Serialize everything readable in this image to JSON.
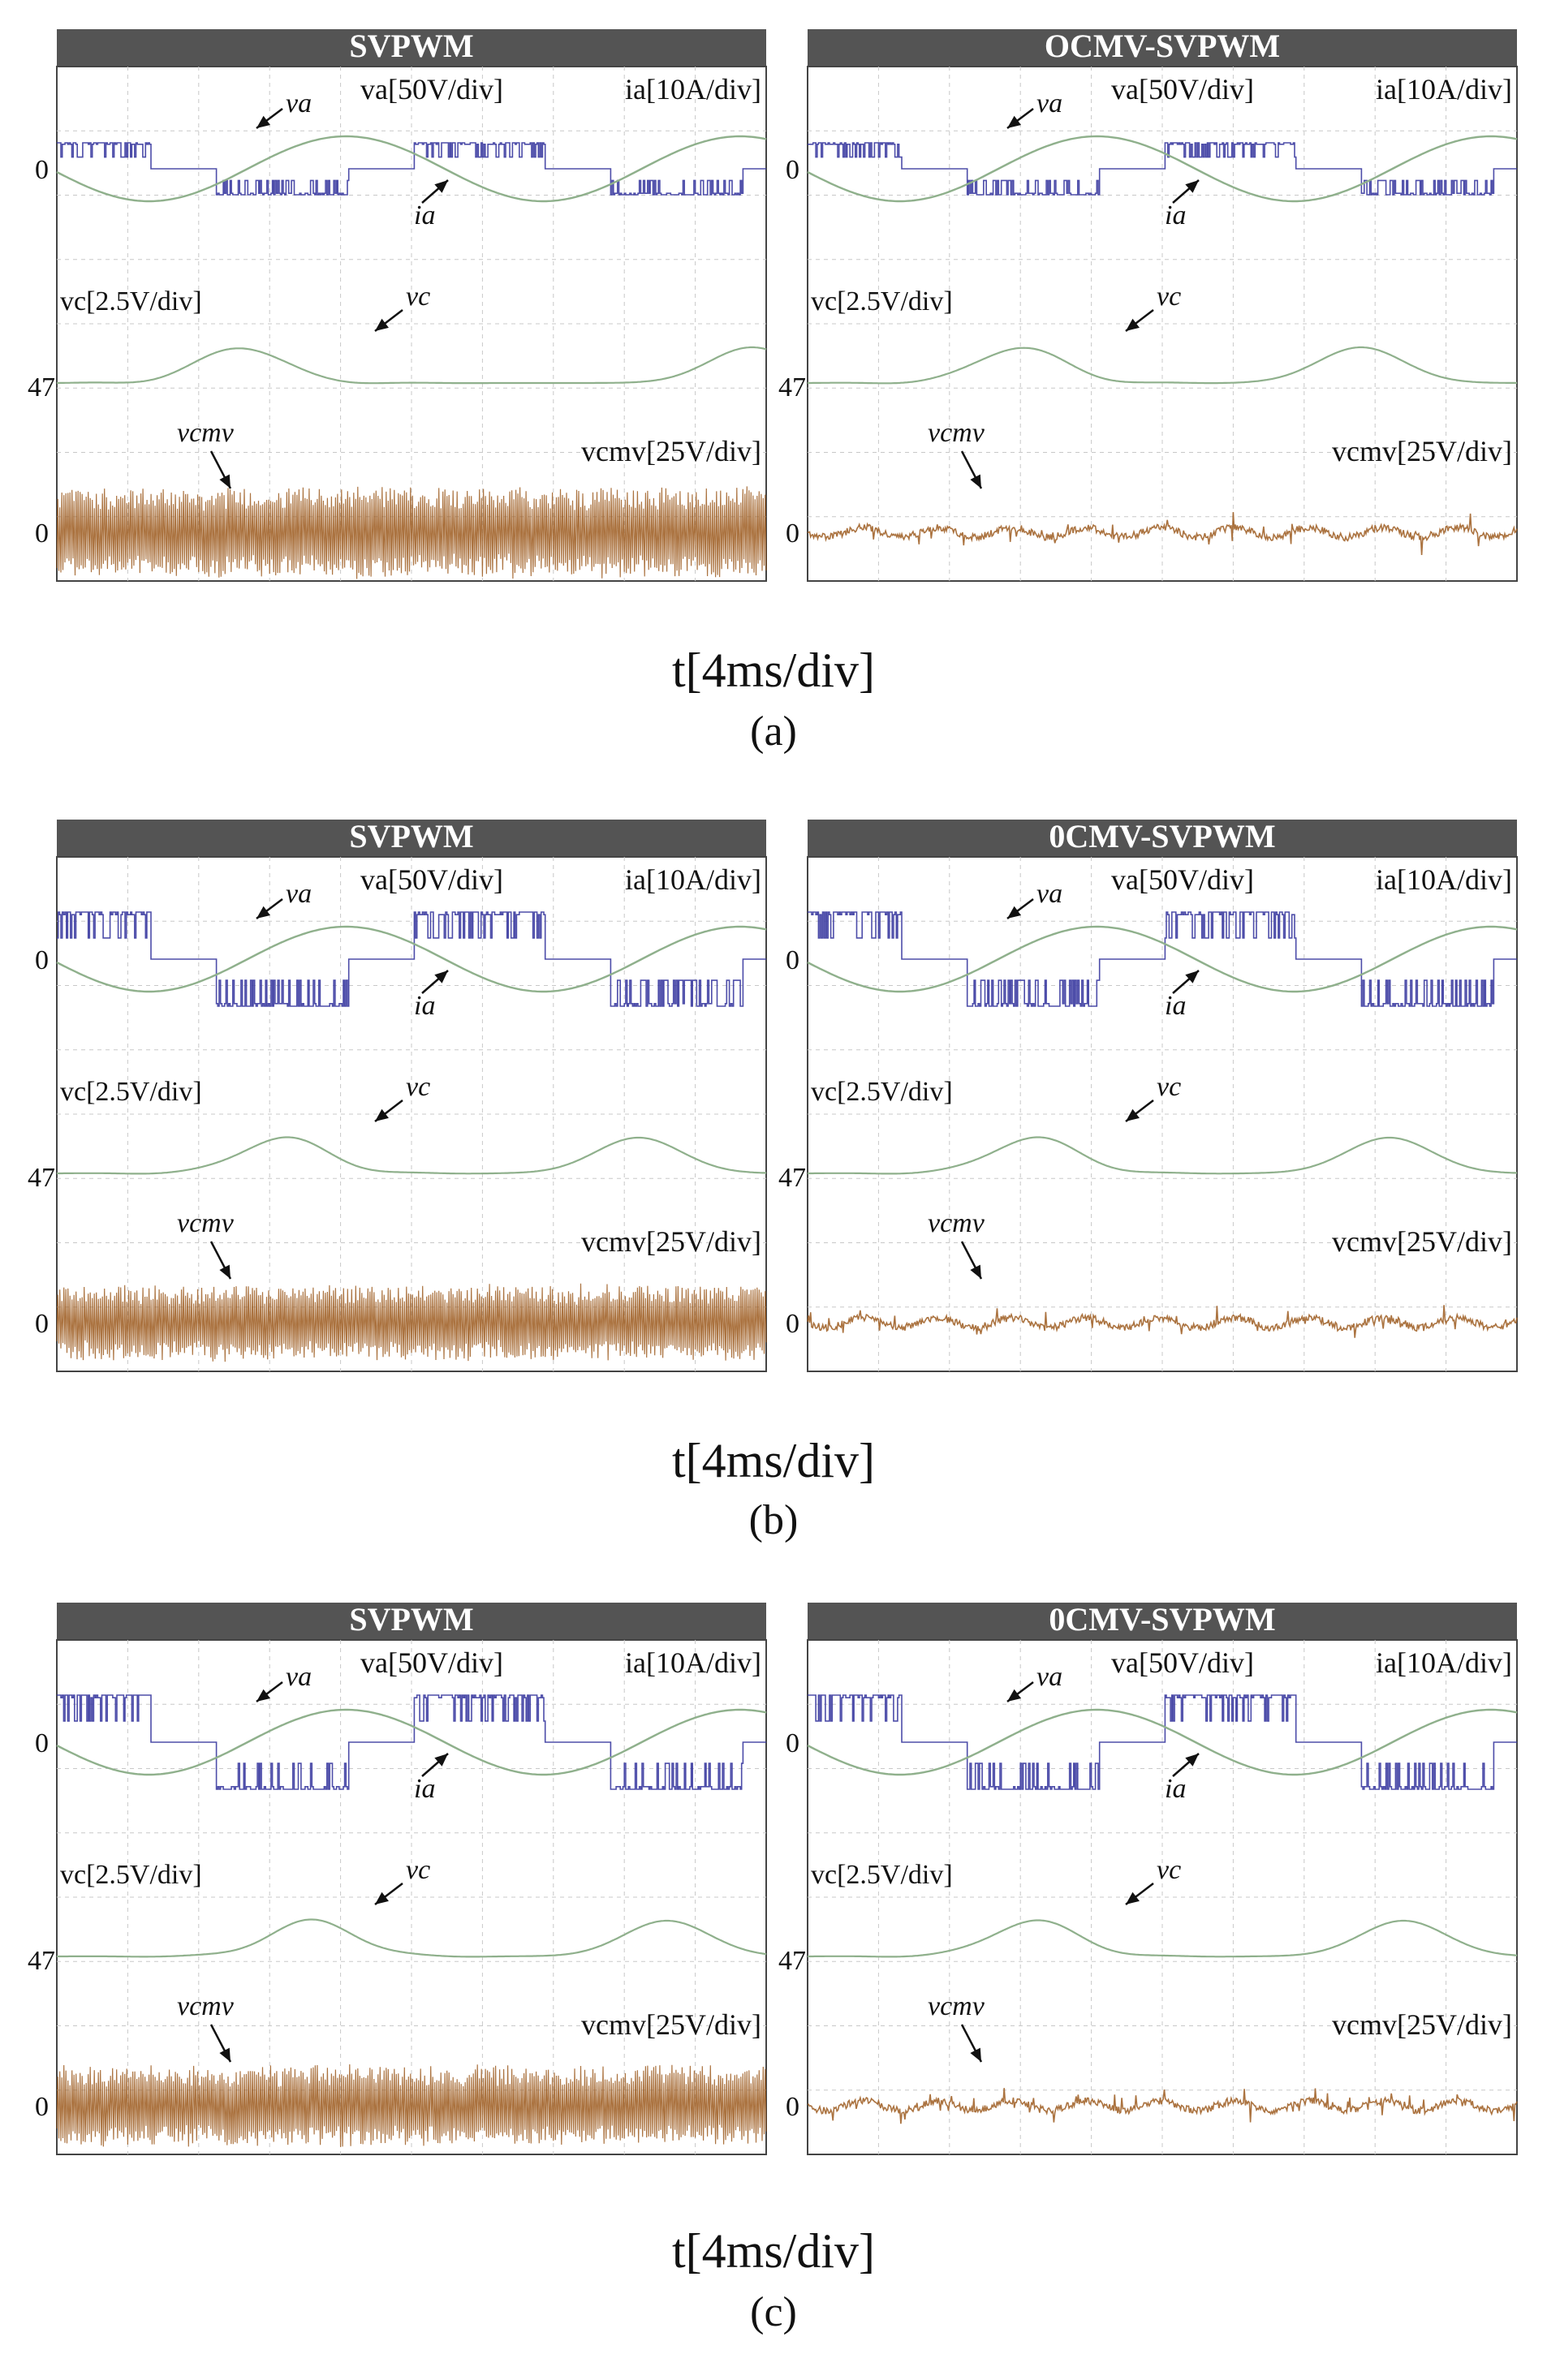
{
  "colors": {
    "header_bg": "#545454",
    "header_text": "#ffffff",
    "va_trace": "#3a3aa0",
    "ia_trace": "#8fb08c",
    "vc_trace": "#8fb08c",
    "vcmv_trace": "#9c5a1e",
    "grid": "#c8c8c8",
    "frame": "#444444"
  },
  "time_axis_label": "t[4ms/div]",
  "sublabels": [
    "(a)",
    "(b)",
    "(c)"
  ],
  "chart_data": [
    {
      "type": "line",
      "row": "(a)",
      "side": "left",
      "title": "SVPWM",
      "va_level": 0.5,
      "switching_density": 0.55,
      "vcmv_amplitude": 0.9,
      "vcmv_dense": true,
      "vc_peaks": [
        0.26,
        0.98
      ],
      "labels": {
        "va_scale": "va[50V/div]",
        "ia_scale": "ia[10A/div]",
        "va": "va",
        "ia": "ia",
        "vc_scale": "vc[2.5V/div]",
        "vc": "vc",
        "vcmv": "vcmv",
        "vcmv_scale": "vcmv[25V/div]",
        "tick_zero_top": "0",
        "tick_47": "47",
        "tick_zero_bottom": "0"
      },
      "series": [
        {
          "name": "va",
          "unit": "V",
          "scale": "50V/div",
          "offset": 0
        },
        {
          "name": "ia",
          "unit": "A",
          "scale": "10A/div",
          "offset": 0
        },
        {
          "name": "vc",
          "unit": "V",
          "scale": "2.5V/div",
          "offset": 47
        },
        {
          "name": "vcmv",
          "unit": "V",
          "scale": "25V/div",
          "offset": 0
        }
      ],
      "xlabel": "t[4ms/div]",
      "xdivisions": 10,
      "ydivisions": 8
    },
    {
      "type": "line",
      "row": "(a)",
      "side": "right",
      "title": "OCMV-SVPWM",
      "va_level": 0.5,
      "switching_density": 0.55,
      "vcmv_amplitude": 0.25,
      "vcmv_dense": false,
      "vc_peaks": [
        0.3,
        0.78
      ],
      "labels": {
        "va_scale": "va[50V/div]",
        "ia_scale": "ia[10A/div]",
        "va": "va",
        "ia": "ia",
        "vc_scale": "vc[2.5V/div]",
        "vc": "vc",
        "vcmv": "vcmv",
        "vcmv_scale": "vcmv[25V/div]",
        "tick_zero_top": "0",
        "tick_47": "47",
        "tick_zero_bottom": "0"
      },
      "series": [
        {
          "name": "va",
          "unit": "V",
          "scale": "50V/div",
          "offset": 0
        },
        {
          "name": "ia",
          "unit": "A",
          "scale": "10A/div",
          "offset": 0
        },
        {
          "name": "vc",
          "unit": "V",
          "scale": "2.5V/div",
          "offset": 47
        },
        {
          "name": "vcmv",
          "unit": "V",
          "scale": "25V/div",
          "offset": 0
        }
      ],
      "xlabel": "t[4ms/div]",
      "xdivisions": 10,
      "ydivisions": 8
    },
    {
      "type": "line",
      "row": "(b)",
      "side": "left",
      "title": "SVPWM",
      "va_level": 1.0,
      "switching_density": 0.5,
      "vcmv_amplitude": 0.75,
      "vcmv_dense": true,
      "vc_peaks": [
        0.32,
        0.82
      ],
      "labels": {
        "va_scale": "va[50V/div]",
        "ia_scale": "ia[10A/div]",
        "va": "va",
        "ia": "ia",
        "vc_scale": "vc[2.5V/div]",
        "vc": "vc",
        "vcmv": "vcmv",
        "vcmv_scale": "vcmv[25V/div]",
        "tick_zero_top": "0",
        "tick_47": "47",
        "tick_zero_bottom": "0"
      },
      "series": [
        {
          "name": "va",
          "unit": "V",
          "scale": "50V/div",
          "offset": 0
        },
        {
          "name": "ia",
          "unit": "A",
          "scale": "10A/div",
          "offset": 0
        },
        {
          "name": "vc",
          "unit": "V",
          "scale": "2.5V/div",
          "offset": 47
        },
        {
          "name": "vcmv",
          "unit": "V",
          "scale": "25V/div",
          "offset": 0
        }
      ],
      "xlabel": "t[4ms/div]",
      "xdivisions": 10,
      "ydivisions": 8
    },
    {
      "type": "line",
      "row": "(b)",
      "side": "right",
      "title": "0CMV-SVPWM",
      "va_level": 1.0,
      "switching_density": 0.5,
      "vcmv_amplitude": 0.25,
      "vcmv_dense": false,
      "vc_peaks": [
        0.32,
        0.82
      ],
      "labels": {
        "va_scale": "va[50V/div]",
        "ia_scale": "ia[10A/div]",
        "va": "va",
        "ia": "ia",
        "vc_scale": "vc[2.5V/div]",
        "vc": "vc",
        "vcmv": "vcmv",
        "vcmv_scale": "vcmv[25V/div]",
        "tick_zero_top": "0",
        "tick_47": "47",
        "tick_zero_bottom": "0"
      },
      "series": [
        {
          "name": "va",
          "unit": "V",
          "scale": "50V/div",
          "offset": 0
        },
        {
          "name": "ia",
          "unit": "A",
          "scale": "10A/div",
          "offset": 0
        },
        {
          "name": "vc",
          "unit": "V",
          "scale": "2.5V/div",
          "offset": 47
        },
        {
          "name": "vcmv",
          "unit": "V",
          "scale": "25V/div",
          "offset": 0
        }
      ],
      "xlabel": "t[4ms/div]",
      "xdivisions": 10,
      "ydivisions": 8
    },
    {
      "type": "line",
      "row": "(c)",
      "side": "left",
      "title": "SVPWM",
      "va_level": 1.0,
      "switching_density": 0.45,
      "vcmv_amplitude": 0.8,
      "vcmv_dense": true,
      "vc_peaks": [
        0.36,
        0.86
      ],
      "labels": {
        "va_scale": "va[50V/div]",
        "ia_scale": "ia[10A/div]",
        "va": "va",
        "ia": "ia",
        "vc_scale": "vc[2.5V/div]",
        "vc": "vc",
        "vcmv": "vcmv",
        "vcmv_scale": "vcmv[25V/div]",
        "tick_zero_top": "0",
        "tick_47": "47",
        "tick_zero_bottom": "0"
      },
      "series": [
        {
          "name": "va",
          "unit": "V",
          "scale": "50V/div",
          "offset": 0
        },
        {
          "name": "ia",
          "unit": "A",
          "scale": "10A/div",
          "offset": 0
        },
        {
          "name": "vc",
          "unit": "V",
          "scale": "2.5V/div",
          "offset": 47
        },
        {
          "name": "vcmv",
          "unit": "V",
          "scale": "25V/div",
          "offset": 0
        }
      ],
      "xlabel": "t[4ms/div]",
      "xdivisions": 10,
      "ydivisions": 8
    },
    {
      "type": "line",
      "row": "(c)",
      "side": "right",
      "title": "0CMV-SVPWM",
      "va_level": 1.0,
      "switching_density": 0.45,
      "vcmv_amplitude": 0.25,
      "vcmv_dense": false,
      "vc_peaks": [
        0.32,
        0.84
      ],
      "labels": {
        "va_scale": "va[50V/div]",
        "ia_scale": "ia[10A/div]",
        "va": "va",
        "ia": "ia",
        "vc_scale": "vc[2.5V/div]",
        "vc": "vc",
        "vcmv": "vcmv",
        "vcmv_scale": "vcmv[25V/div]",
        "tick_zero_top": "0",
        "tick_47": "47",
        "tick_zero_bottom": "0"
      },
      "series": [
        {
          "name": "va",
          "unit": "V",
          "scale": "50V/div",
          "offset": 0
        },
        {
          "name": "ia",
          "unit": "A",
          "scale": "10A/div",
          "offset": 0
        },
        {
          "name": "vc",
          "unit": "V",
          "scale": "2.5V/div",
          "offset": 47
        },
        {
          "name": "vcmv",
          "unit": "V",
          "scale": "25V/div",
          "offset": 0
        }
      ],
      "xlabel": "t[4ms/div]",
      "xdivisions": 10,
      "ydivisions": 8
    }
  ]
}
